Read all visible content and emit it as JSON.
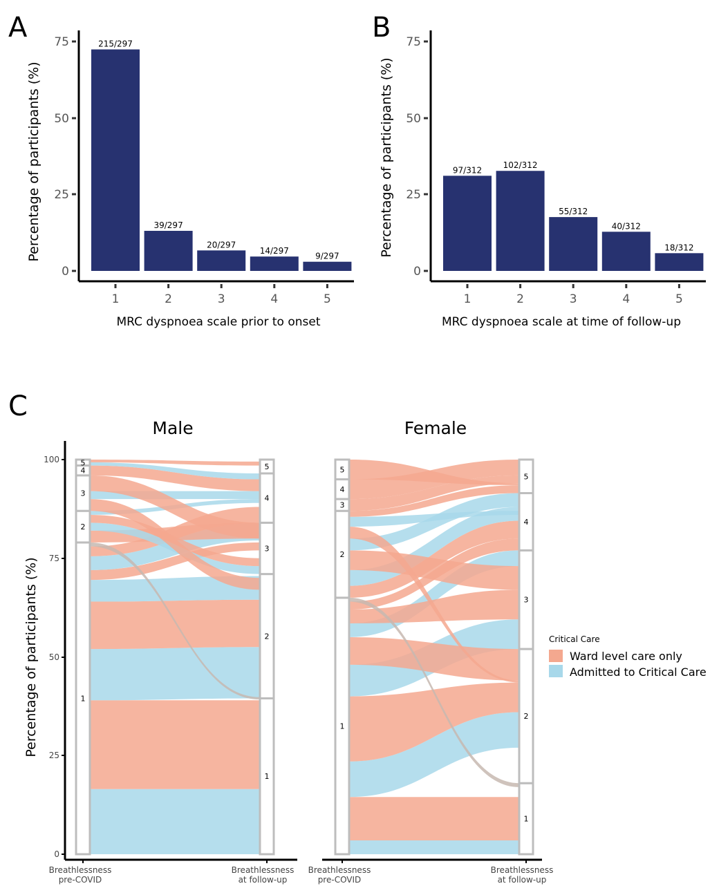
{
  "panels": {
    "a": "A",
    "b": "B",
    "c": "C"
  },
  "colors": {
    "bar": "#273270",
    "ward": "#f4a88f",
    "critical": "#a8d8ea",
    "mixed": "#c7b9b0",
    "axis": "#000000",
    "stratum": "#bdbdbd"
  },
  "chart_data": [
    {
      "type": "bar",
      "categories": [
        "1",
        "2",
        "3",
        "4",
        "5"
      ],
      "values": [
        72.4,
        13.1,
        6.7,
        4.7,
        3.0
      ],
      "labels": [
        "215/297",
        "39/297",
        "20/297",
        "14/297",
        "9/297"
      ],
      "xlabel": "MRC dyspnoea scale prior to onset",
      "ylabel": "Percentage of  participants (%)",
      "ylim": [
        0,
        75
      ],
      "yticks": [
        "0",
        "25",
        "50",
        "75"
      ],
      "grid": false
    },
    {
      "type": "bar",
      "categories": [
        "1",
        "2",
        "3",
        "4",
        "5"
      ],
      "values": [
        31.1,
        32.7,
        17.6,
        12.8,
        5.8
      ],
      "labels": [
        "97/312",
        "102/312",
        "55/312",
        "40/312",
        "18/312"
      ],
      "xlabel": "MRC dyspnoea scale at time of follow-up",
      "ylabel": "Percentage of participants (%)",
      "ylim": [
        0,
        75
      ],
      "yticks": [
        "0",
        "25",
        "50",
        "75"
      ],
      "grid": false
    },
    {
      "type": "alluvial",
      "ylabel": "Percentage of participants (%)",
      "ylim": [
        0,
        100
      ],
      "yticks": [
        "0",
        "25",
        "50",
        "75",
        "100"
      ],
      "axes": [
        "Breathlessness pre-COVID",
        "Breathlessness at follow-up"
      ],
      "legend": {
        "title": "Critical Care",
        "items": [
          "Ward level care only",
          "Admitted to Critical Care"
        ],
        "placement": "right"
      },
      "facets": [
        {
          "name": "Male",
          "pre_strata": [
            {
              "label": "1",
              "from": 0,
              "to": 79
            },
            {
              "label": "2",
              "from": 79,
              "to": 87
            },
            {
              "label": "3",
              "from": 87,
              "to": 96
            },
            {
              "label": "4",
              "from": 96,
              "to": 98.5
            },
            {
              "label": "5",
              "from": 98.5,
              "to": 100
            }
          ],
          "post_strata": [
            {
              "label": "1",
              "from": 0,
              "to": 39.5
            },
            {
              "label": "2",
              "from": 39.5,
              "to": 71
            },
            {
              "label": "3",
              "from": 71,
              "to": 84
            },
            {
              "label": "4",
              "from": 84,
              "to": 96.5
            },
            {
              "label": "5",
              "from": 96.5,
              "to": 100
            }
          ],
          "flows": [
            {
              "group": "critical",
              "pre": [
                0,
                16.5
              ],
              "post": [
                0,
                16.5
              ]
            },
            {
              "group": "ward",
              "pre": [
                16.5,
                39
              ],
              "post": [
                16.5,
                39
              ]
            },
            {
              "group": "critical",
              "pre": [
                39,
                52
              ],
              "post": [
                39.5,
                52.5
              ]
            },
            {
              "group": "ward",
              "pre": [
                52,
                64
              ],
              "post": [
                52.5,
                64.5
              ]
            },
            {
              "group": "critical",
              "pre": [
                64,
                69.5
              ],
              "post": [
                64.5,
                70.5
              ]
            },
            {
              "group": "ward",
              "pre": [
                69.5,
                72
              ],
              "post": [
                77,
                79
              ]
            },
            {
              "group": "critical",
              "pre": [
                72,
                75.5
              ],
              "post": [
                79.5,
                84
              ]
            },
            {
              "group": "ward",
              "pre": [
                75.5,
                78
              ],
              "post": [
                84,
                88
              ]
            },
            {
              "group": "mixed",
              "pre": [
                78,
                79
              ],
              "post": [
                39.2,
                39.8
              ]
            },
            {
              "group": "ward",
              "pre": [
                79,
                82
              ],
              "post": [
                80,
                84
              ]
            },
            {
              "group": "critical",
              "pre": [
                82,
                84
              ],
              "post": [
                71,
                73
              ]
            },
            {
              "group": "ward",
              "pre": [
                84,
                86
              ],
              "post": [
                73,
                75
              ]
            },
            {
              "group": "critical",
              "pre": [
                86,
                87
              ],
              "post": [
                89,
                90
              ]
            },
            {
              "group": "ward",
              "pre": [
                87,
                90
              ],
              "post": [
                67,
                70
              ]
            },
            {
              "group": "critical",
              "pre": [
                90,
                92
              ],
              "post": [
                90,
                92
              ]
            },
            {
              "group": "ward",
              "pre": [
                92,
                96
              ],
              "post": [
                80,
                84
              ]
            },
            {
              "group": "ward",
              "pre": [
                96,
                98.5
              ],
              "post": [
                92,
                95
              ]
            },
            {
              "group": "critical",
              "pre": [
                98.5,
                99.3
              ],
              "post": [
                95,
                96.5
              ]
            },
            {
              "group": "ward",
              "pre": [
                99.3,
                100
              ],
              "post": [
                98.5,
                99.5
              ]
            }
          ]
        },
        {
          "name": "Female",
          "pre_strata": [
            {
              "label": "1",
              "from": 0,
              "to": 65
            },
            {
              "label": "2",
              "from": 65,
              "to": 87
            },
            {
              "label": "3",
              "from": 87,
              "to": 90
            },
            {
              "label": "4",
              "from": 90,
              "to": 95
            },
            {
              "label": "5",
              "from": 95,
              "to": 100
            }
          ],
          "post_strata": [
            {
              "label": "1",
              "from": 0,
              "to": 18
            },
            {
              "label": "2",
              "from": 18,
              "to": 52
            },
            {
              "label": "3",
              "from": 52,
              "to": 77
            },
            {
              "label": "4",
              "from": 77,
              "to": 91.5
            },
            {
              "label": "5",
              "from": 91.5,
              "to": 100
            }
          ],
          "flows": [
            {
              "group": "critical",
              "pre": [
                0,
                3.5
              ],
              "post": [
                0,
                3.5
              ]
            },
            {
              "group": "ward",
              "pre": [
                3.5,
                14.5
              ],
              "post": [
                3.5,
                14.5
              ]
            },
            {
              "group": "critical",
              "pre": [
                14.5,
                23.5
              ],
              "post": [
                27,
                36
              ]
            },
            {
              "group": "ward",
              "pre": [
                23.5,
                40
              ],
              "post": [
                36,
                43.5
              ]
            },
            {
              "group": "critical",
              "pre": [
                40,
                48
              ],
              "post": [
                52,
                59.5
              ]
            },
            {
              "group": "ward",
              "pre": [
                48,
                55
              ],
              "post": [
                44,
                52
              ]
            },
            {
              "group": "critical",
              "pre": [
                55,
                58.5
              ],
              "post": [
                73,
                77
              ]
            },
            {
              "group": "ward",
              "pre": [
                58.5,
                62
              ],
              "post": [
                59.5,
                67
              ]
            },
            {
              "group": "ward",
              "pre": [
                62,
                64
              ],
              "post": [
                77,
                80
              ]
            },
            {
              "group": "mixed",
              "pre": [
                64,
                65
              ],
              "post": [
                17,
                18
              ]
            },
            {
              "group": "ward",
              "pre": [
                65,
                68
              ],
              "post": [
                80,
                84.5
              ]
            },
            {
              "group": "critical",
              "pre": [
                68,
                72
              ],
              "post": [
                84.5,
                88
              ]
            },
            {
              "group": "ward",
              "pre": [
                72,
                77
              ],
              "post": [
                67,
                73
              ]
            },
            {
              "group": "critical",
              "pre": [
                77,
                80
              ],
              "post": [
                88,
                91.5
              ]
            },
            {
              "group": "ward",
              "pre": [
                80,
                83
              ],
              "post": [
                43.5,
                44
              ]
            },
            {
              "group": "critical",
              "pre": [
                83,
                85.5
              ],
              "post": [
                86,
                87
              ]
            },
            {
              "group": "ward",
              "pre": [
                85.5,
                87
              ],
              "post": [
                91.5,
                93.5
              ]
            },
            {
              "group": "ward",
              "pre": [
                87,
                90
              ],
              "post": [
                94,
                96
              ]
            },
            {
              "group": "ward",
              "pre": [
                90,
                95
              ],
              "post": [
                96,
                100
              ]
            },
            {
              "group": "ward",
              "pre": [
                95,
                100
              ],
              "post": [
                93.5,
                94
              ]
            }
          ]
        }
      ]
    }
  ]
}
